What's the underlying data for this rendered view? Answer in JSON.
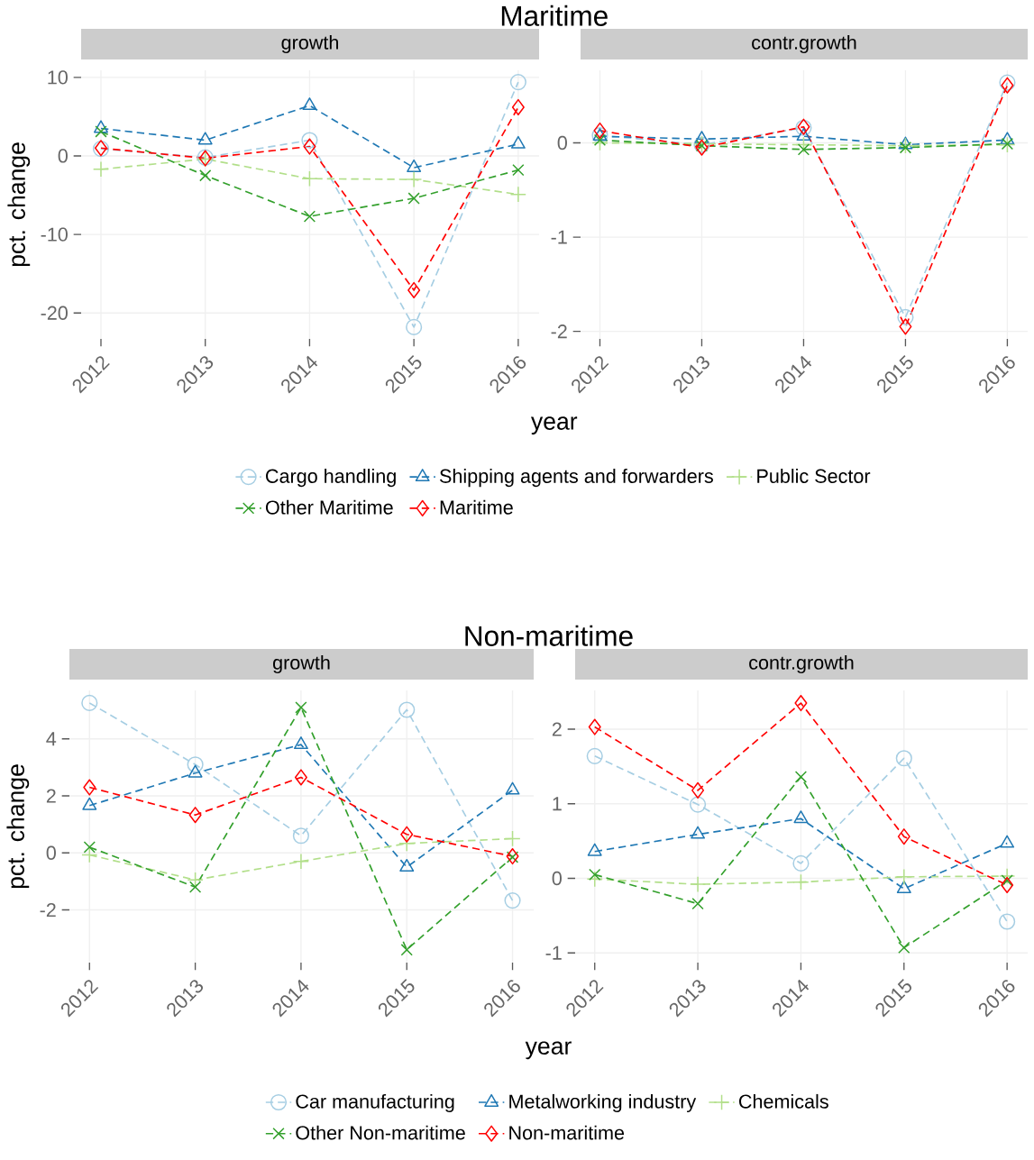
{
  "chart_data": [
    {
      "type": "line",
      "title": "Maritime",
      "subtitle": "growth",
      "xlabel": "year",
      "ylabel": "pct. change",
      "categories": [
        "2012",
        "2013",
        "2014",
        "2015",
        "2016"
      ],
      "ylim": [
        -23.3,
        10.9
      ],
      "yticks": [
        -20,
        -10,
        0,
        10
      ],
      "grid": true,
      "legend": "bottom",
      "line_style": "dashed",
      "series": [
        {
          "name": "Cargo handling",
          "color": "#a6cee3",
          "marker": "circle",
          "values": [
            0.9,
            -0.2,
            2.0,
            -21.8,
            9.4
          ]
        },
        {
          "name": "Shipping agents and forwarders",
          "color": "#1f78b4",
          "marker": "triangle",
          "values": [
            3.5,
            2.0,
            6.4,
            -1.5,
            1.5
          ]
        },
        {
          "name": "Public Sector",
          "color": "#b2df8a",
          "marker": "plus",
          "values": [
            -1.7,
            -0.4,
            -2.9,
            -3.0,
            -4.9
          ]
        },
        {
          "name": "Other Maritime",
          "color": "#33a02c",
          "marker": "cross",
          "values": [
            3.1,
            -2.5,
            -7.7,
            -5.4,
            -1.8
          ]
        },
        {
          "name": "Maritime",
          "color": "#ff0000",
          "marker": "diamond",
          "values": [
            1.0,
            -0.3,
            1.2,
            -17.1,
            6.2
          ]
        }
      ]
    },
    {
      "type": "line",
      "subtitle": "contr.growth",
      "categories": [
        "2012",
        "2013",
        "2014",
        "2015",
        "2016"
      ],
      "ylim": [
        -2.08,
        0.77
      ],
      "yticks": [
        -2,
        -1,
        0
      ],
      "grid": true,
      "line_style": "dashed",
      "series": [
        {
          "color": "#a6cee3",
          "marker": "circle",
          "values": [
            0.08,
            -0.02,
            0.16,
            -1.85,
            0.64
          ]
        },
        {
          "color": "#1f78b4",
          "marker": "triangle",
          "values": [
            0.07,
            0.04,
            0.07,
            -0.02,
            0.03
          ]
        },
        {
          "color": "#b2df8a",
          "marker": "plus",
          "values": [
            0.0,
            -0.01,
            -0.02,
            -0.03,
            -0.02
          ]
        },
        {
          "color": "#33a02c",
          "marker": "cross",
          "values": [
            0.03,
            -0.03,
            -0.07,
            -0.05,
            -0.01
          ]
        },
        {
          "color": "#ff0000",
          "marker": "diamond",
          "values": [
            0.13,
            -0.05,
            0.17,
            -1.95,
            0.61
          ]
        }
      ]
    },
    {
      "type": "line",
      "title": "Non-maritime",
      "subtitle": "growth",
      "xlabel": "year",
      "ylabel": "pct. change",
      "categories": [
        "2012",
        "2013",
        "2014",
        "2015",
        "2016"
      ],
      "ylim": [
        -3.85,
        5.7
      ],
      "yticks": [
        -2,
        0,
        2,
        4
      ],
      "grid": true,
      "legend": "bottom",
      "line_style": "dashed",
      "series": [
        {
          "name": "Car manufacturing",
          "color": "#a6cee3",
          "marker": "circle",
          "values": [
            5.26,
            3.1,
            0.6,
            5.02,
            -1.67
          ]
        },
        {
          "name": "Metalworking industry",
          "color": "#1f78b4",
          "marker": "triangle",
          "values": [
            1.66,
            2.8,
            3.8,
            -0.5,
            2.2
          ]
        },
        {
          "name": "Chemicals",
          "color": "#b2df8a",
          "marker": "plus",
          "values": [
            -0.07,
            -0.95,
            -0.3,
            0.33,
            0.5
          ]
        },
        {
          "name": "Other Non-maritime",
          "color": "#33a02c",
          "marker": "cross",
          "values": [
            0.2,
            -1.2,
            5.1,
            -3.4,
            -0.15
          ]
        },
        {
          "name": "Non-maritime",
          "color": "#ff0000",
          "marker": "diamond",
          "values": [
            2.3,
            1.33,
            2.65,
            0.65,
            -0.12
          ]
        }
      ]
    },
    {
      "type": "line",
      "subtitle": "contr.growth",
      "categories": [
        "2012",
        "2013",
        "2014",
        "2015",
        "2016"
      ],
      "ylim": [
        -1.13,
        2.52
      ],
      "yticks": [
        -1,
        0,
        1,
        2
      ],
      "grid": true,
      "line_style": "dashed",
      "series": [
        {
          "color": "#a6cee3",
          "marker": "circle",
          "values": [
            1.64,
            0.99,
            0.2,
            1.61,
            -0.58
          ]
        },
        {
          "color": "#1f78b4",
          "marker": "triangle",
          "values": [
            0.36,
            0.59,
            0.8,
            -0.14,
            0.47
          ]
        },
        {
          "color": "#b2df8a",
          "marker": "plus",
          "values": [
            -0.01,
            -0.08,
            -0.05,
            0.02,
            0.03
          ]
        },
        {
          "color": "#33a02c",
          "marker": "cross",
          "values": [
            0.05,
            -0.34,
            1.36,
            -0.93,
            -0.03
          ]
        },
        {
          "color": "#ff0000",
          "marker": "diamond",
          "values": [
            2.03,
            1.18,
            2.35,
            0.56,
            -0.09
          ]
        }
      ]
    }
  ]
}
